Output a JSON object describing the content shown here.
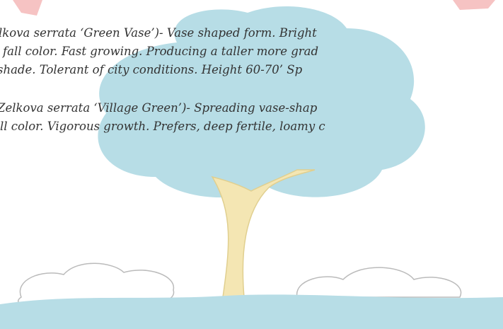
{
  "paragraphs": [
    {
      "lines": [
        "lkova serrata ‘Green Vase’)- Vase shaped form. Bright",
        "fall color. Fast growing. Producing a taller more grad",
        "shade. Tolerant of city conditions. Height 60-70’ Sp"
      ]
    },
    {
      "lines": [
        "Zelkova serrata ‘Village Green’)- Spreading vase-shap",
        "ll color. Vigorous growth. Prefers, deep fertile, loamy c"
      ]
    }
  ]
}
